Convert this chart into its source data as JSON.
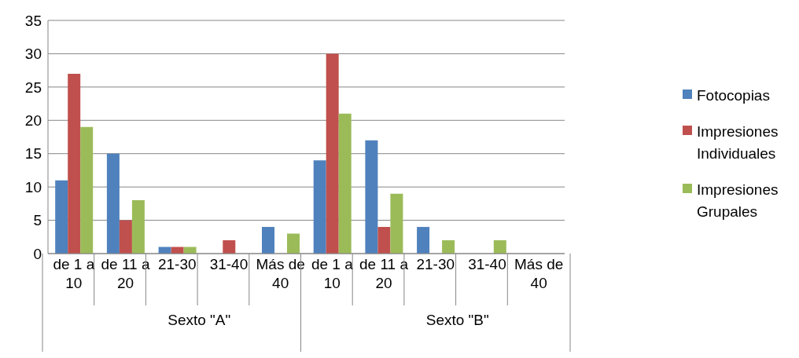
{
  "chart_data": {
    "type": "bar",
    "categories": [
      "de 1 a 10",
      "de 11 a 20",
      "21-30",
      "31-40",
      "Más de 40",
      "de 1 a 10",
      "de 11 a 20",
      "21-30",
      "31-40",
      "Más de 40"
    ],
    "series": [
      {
        "name": "Fotocopias",
        "color": "#4f81bd",
        "values": [
          11,
          15,
          1,
          0,
          4,
          14,
          17,
          4,
          0,
          0
        ]
      },
      {
        "name": "Impresiones Individuales",
        "color": "#c0504d",
        "values": [
          27,
          5,
          1,
          2,
          0,
          30,
          4,
          0,
          0,
          0
        ]
      },
      {
        "name": "Impresiones Grupales",
        "color": "#9bbb59",
        "values": [
          19,
          8,
          1,
          0,
          3,
          21,
          9,
          2,
          2,
          0
        ]
      }
    ],
    "annotations": [
      "Sexto \"A\"",
      "Sexto \"B\""
    ],
    "ylim": [
      0,
      35
    ],
    "yticks": [
      0,
      5,
      10,
      15,
      20,
      25,
      30,
      35
    ],
    "grid": "y",
    "legend": "right"
  }
}
